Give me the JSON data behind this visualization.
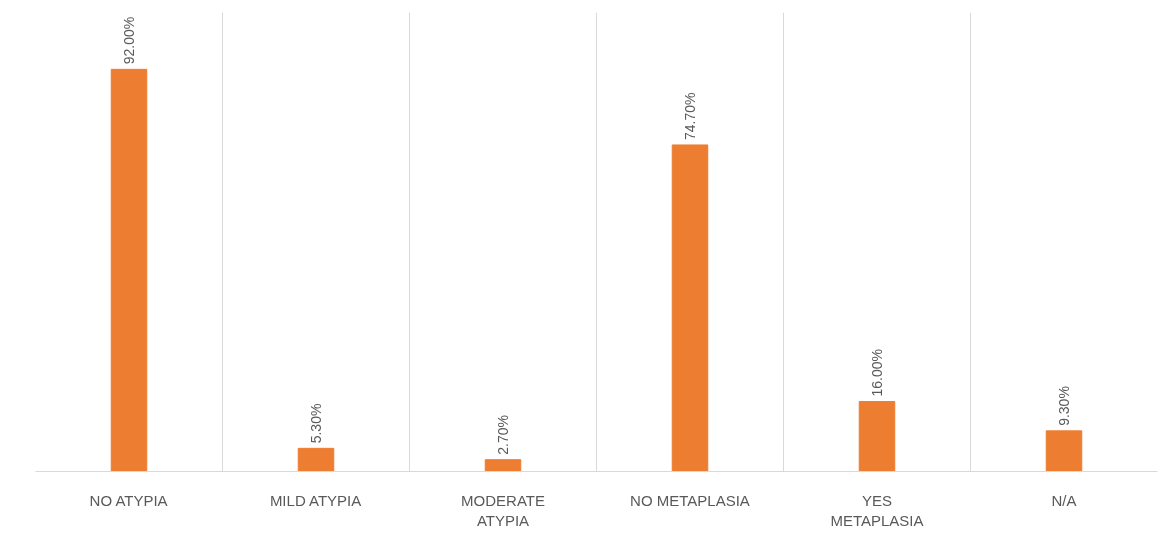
{
  "chart_data": {
    "type": "bar",
    "categories": [
      "NO ATYPIA",
      "MILD ATYPIA",
      "MODERATE ATYPIA",
      "NO METAPLASIA",
      "YES METAPLASIA",
      "N/A"
    ],
    "values": [
      92.0,
      5.3,
      2.7,
      74.7,
      16.0,
      9.3
    ],
    "value_labels": [
      "92.00%",
      "5.30%",
      "2.70%",
      "74.70%",
      "16.00%",
      "9.30%"
    ],
    "color": "#ed7d31",
    "ylim": [
      0,
      105
    ],
    "tick_labels": "x",
    "grid": "x"
  }
}
